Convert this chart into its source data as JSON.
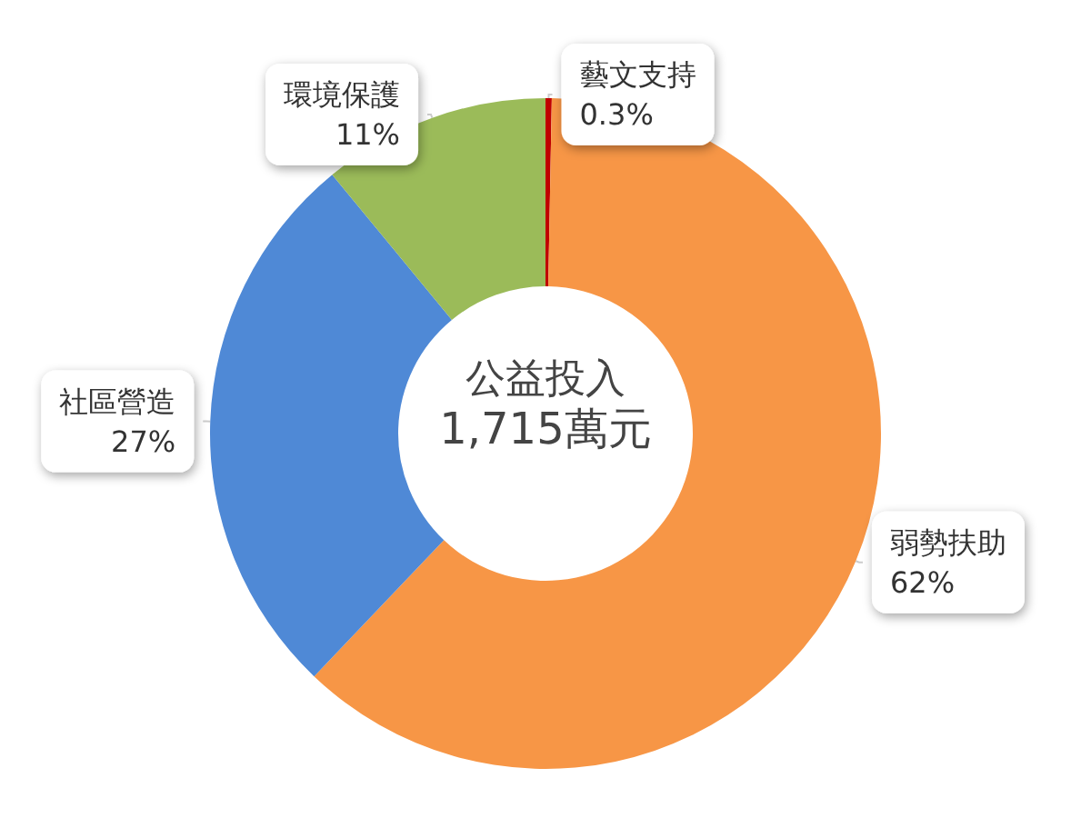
{
  "chart_data": {
    "type": "donut",
    "title": "公益投入",
    "subtitle": "1,715萬元",
    "categories": [
      "藝文支持",
      "弱勢扶助",
      "社區營造",
      "環境保護"
    ],
    "values": [
      0.3,
      62,
      27,
      11
    ],
    "value_labels": [
      "0.3%",
      "62%",
      "27%",
      "11%"
    ],
    "colors": [
      "#c00000",
      "#f79646",
      "#4f89d6",
      "#9bbb59"
    ],
    "legend": false
  }
}
